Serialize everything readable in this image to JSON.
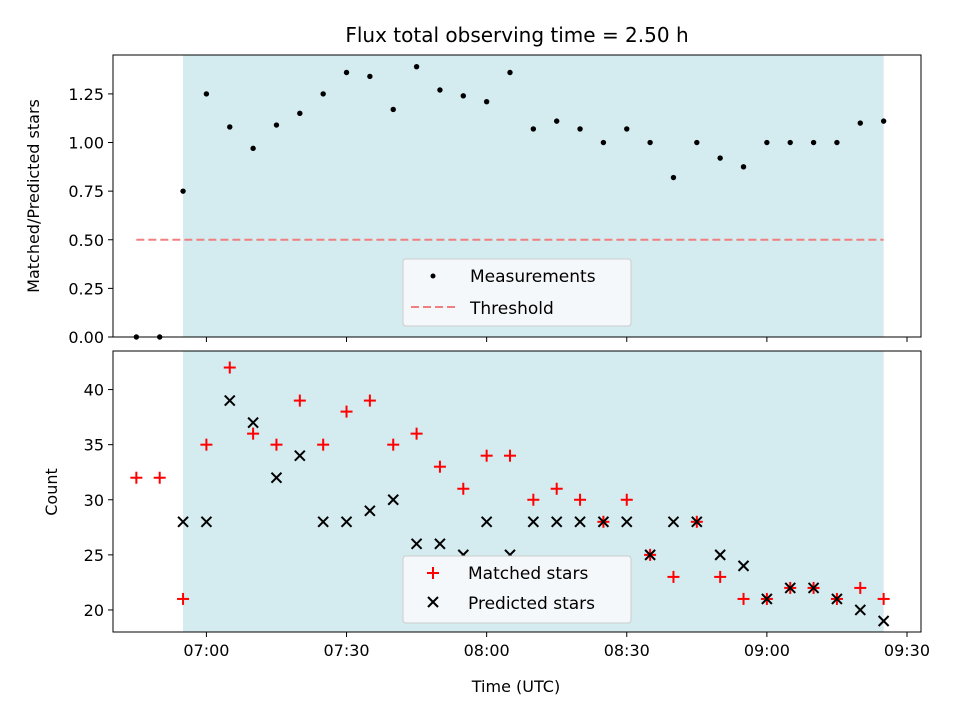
{
  "chart_data": [
    {
      "type": "scatter",
      "title": "Flux total observing time = 2.50 h",
      "xlabel": "",
      "ylabel": "Matched/Predicted stars",
      "xlim": [
        "06:40",
        "09:33"
      ],
      "ylim": [
        0,
        1.45
      ],
      "yticks": [
        "0.00",
        "0.25",
        "0.50",
        "0.75",
        "1.00",
        "1.25"
      ],
      "shaded_interval": {
        "from": "06:55",
        "to": "09:25",
        "color": "#d4ebf0"
      },
      "threshold": {
        "value": 0.5,
        "from": "06:45",
        "to": "09:25",
        "color": "#f08080"
      },
      "legend": {
        "position": "bottom-center",
        "entries": [
          "Measurements",
          "Threshold"
        ]
      },
      "series": [
        {
          "name": "Measurements",
          "marker": "dot",
          "color": "#000000",
          "x": [
            "06:45",
            "06:50",
            "06:55",
            "07:00",
            "07:05",
            "07:10",
            "07:15",
            "07:20",
            "07:25",
            "07:30",
            "07:35",
            "07:40",
            "07:45",
            "07:50",
            "07:55",
            "08:00",
            "08:05",
            "08:10",
            "08:15",
            "08:20",
            "08:25",
            "08:30",
            "08:35",
            "08:40",
            "08:45",
            "08:50",
            "08:55",
            "09:00",
            "09:05",
            "09:10",
            "09:15",
            "09:20",
            "09:25"
          ],
          "y": [
            0.0,
            0.0,
            0.75,
            1.25,
            1.08,
            0.97,
            1.09,
            1.15,
            1.25,
            1.36,
            1.34,
            1.17,
            1.39,
            1.27,
            1.24,
            1.21,
            1.36,
            1.07,
            1.11,
            1.07,
            1.0,
            1.07,
            1.0,
            0.82,
            1.0,
            0.92,
            0.875,
            1.0,
            1.0,
            1.0,
            1.0,
            1.1,
            1.11
          ]
        }
      ]
    },
    {
      "type": "scatter",
      "title": "",
      "xlabel": "Time (UTC)",
      "ylabel": "Count",
      "xlim": [
        "06:40",
        "09:33"
      ],
      "ylim": [
        18,
        43.5
      ],
      "yticks": [
        "20",
        "25",
        "30",
        "35",
        "40"
      ],
      "xticks": [
        "07:00",
        "07:30",
        "08:00",
        "08:30",
        "09:00",
        "09:30"
      ],
      "shaded_interval": {
        "from": "06:55",
        "to": "09:25",
        "color": "#d4ebf0"
      },
      "legend": {
        "position": "bottom-center",
        "entries": [
          "Matched stars",
          "Predicted stars"
        ]
      },
      "series": [
        {
          "name": "Matched stars",
          "marker": "plus",
          "color": "#ff0000",
          "x": [
            "06:45",
            "06:50",
            "06:55",
            "07:00",
            "07:05",
            "07:10",
            "07:15",
            "07:20",
            "07:25",
            "07:30",
            "07:35",
            "07:40",
            "07:45",
            "07:50",
            "07:55",
            "08:00",
            "08:05",
            "08:10",
            "08:15",
            "08:20",
            "08:25",
            "08:30",
            "08:35",
            "08:40",
            "08:45",
            "08:50",
            "08:55",
            "09:00",
            "09:05",
            "09:10",
            "09:15",
            "09:20",
            "09:25"
          ],
          "y": [
            32,
            32,
            21,
            35,
            42,
            36,
            35,
            39,
            35,
            38,
            39,
            35,
            36,
            33,
            31,
            34,
            34,
            30,
            31,
            30,
            28,
            30,
            25,
            23,
            28,
            23,
            21,
            21,
            22,
            22,
            21,
            22,
            21
          ]
        },
        {
          "name": "Predicted stars",
          "marker": "x",
          "color": "#000000",
          "x": [
            "06:55",
            "07:00",
            "07:05",
            "07:10",
            "07:15",
            "07:20",
            "07:25",
            "07:30",
            "07:35",
            "07:40",
            "07:45",
            "07:50",
            "07:55",
            "08:00",
            "08:05",
            "08:10",
            "08:15",
            "08:20",
            "08:25",
            "08:30",
            "08:35",
            "08:40",
            "08:45",
            "08:50",
            "08:55",
            "09:00",
            "09:05",
            "09:10",
            "09:15",
            "09:20",
            "09:25"
          ],
          "y": [
            28,
            28,
            39,
            37,
            32,
            34,
            28,
            28,
            29,
            30,
            26,
            26,
            25,
            28,
            25,
            28,
            28,
            28,
            28,
            28,
            25,
            28,
            28,
            25,
            24,
            21,
            22,
            22,
            21,
            20,
            19
          ]
        }
      ]
    }
  ]
}
